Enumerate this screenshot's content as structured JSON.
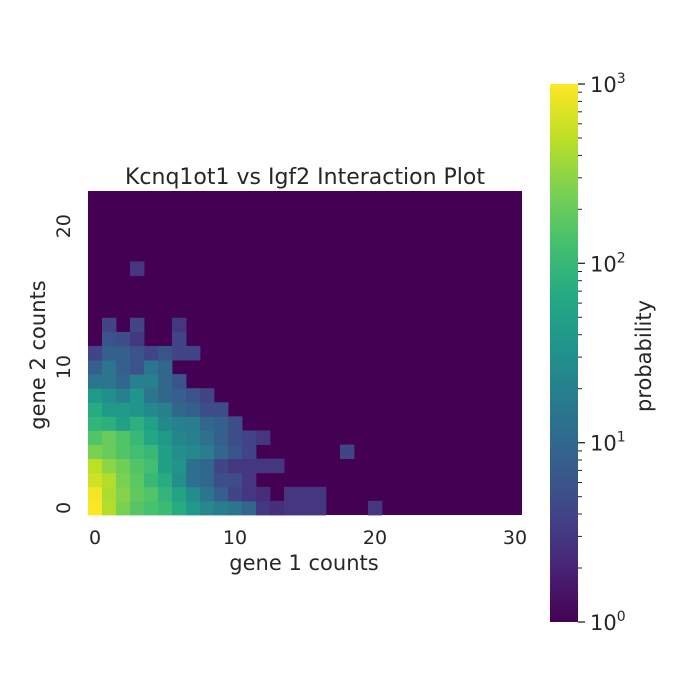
{
  "chart_data": {
    "type": "heatmap",
    "title": "Kcnq1ot1 vs Igf2 Interaction Plot",
    "xlabel": "gene 1 counts",
    "ylabel": "gene 2 counts",
    "x_range": [
      0,
      30
    ],
    "y_range": [
      0,
      22
    ],
    "x_ticks": [
      0,
      10,
      20,
      30
    ],
    "y_ticks": [
      0,
      10,
      20
    ],
    "colorbar": {
      "label": "probability",
      "scale": "log",
      "colormap": "viridis",
      "range": [
        1,
        1000
      ],
      "ticks": [
        {
          "value": 1,
          "base": "10",
          "exp": "0"
        },
        {
          "value": 10,
          "base": "10",
          "exp": "1"
        },
        {
          "value": 100,
          "base": "10",
          "exp": "2"
        },
        {
          "value": 1000,
          "base": "10",
          "exp": "3"
        }
      ]
    },
    "background_value": 1,
    "note": "Cells not listed have value 1 (10^0). Cells given as [x, y, value] in count units.",
    "cells": [
      [
        0,
        0,
        1000
      ],
      [
        1,
        0,
        450
      ],
      [
        2,
        0,
        250
      ],
      [
        3,
        0,
        160
      ],
      [
        4,
        0,
        130
      ],
      [
        5,
        0,
        110
      ],
      [
        6,
        0,
        70
      ],
      [
        7,
        0,
        40
      ],
      [
        8,
        0,
        25
      ],
      [
        9,
        0,
        18
      ],
      [
        10,
        0,
        15
      ],
      [
        11,
        0,
        10
      ],
      [
        12,
        0,
        3
      ],
      [
        13,
        0,
        2.5
      ],
      [
        14,
        0,
        3
      ],
      [
        15,
        0,
        3
      ],
      [
        16,
        0,
        3
      ],
      [
        20,
        0,
        3
      ],
      [
        0,
        1,
        900
      ],
      [
        1,
        1,
        420
      ],
      [
        2,
        1,
        280
      ],
      [
        3,
        1,
        180
      ],
      [
        4,
        1,
        150
      ],
      [
        5,
        1,
        90
      ],
      [
        6,
        1,
        55
      ],
      [
        7,
        1,
        28
      ],
      [
        8,
        1,
        15
      ],
      [
        9,
        1,
        8
      ],
      [
        10,
        1,
        4
      ],
      [
        11,
        1,
        3
      ],
      [
        12,
        1,
        2.5
      ],
      [
        14,
        1,
        3
      ],
      [
        15,
        1,
        3
      ],
      [
        16,
        1,
        3
      ],
      [
        0,
        2,
        600
      ],
      [
        1,
        2,
        450
      ],
      [
        2,
        2,
        250
      ],
      [
        3,
        2,
        170
      ],
      [
        4,
        2,
        100
      ],
      [
        5,
        2,
        70
      ],
      [
        6,
        2,
        30
      ],
      [
        7,
        2,
        12
      ],
      [
        8,
        2,
        10
      ],
      [
        9,
        2,
        5
      ],
      [
        10,
        2,
        5
      ],
      [
        11,
        2,
        3
      ],
      [
        0,
        3,
        500
      ],
      [
        1,
        3,
        300
      ],
      [
        2,
        3,
        220
      ],
      [
        3,
        3,
        150
      ],
      [
        4,
        3,
        120
      ],
      [
        5,
        3,
        50
      ],
      [
        6,
        3,
        35
      ],
      [
        7,
        3,
        12
      ],
      [
        8,
        3,
        10
      ],
      [
        9,
        3,
        4
      ],
      [
        10,
        3,
        3
      ],
      [
        11,
        3,
        3
      ],
      [
        12,
        3,
        3
      ],
      [
        13,
        3,
        3
      ],
      [
        0,
        4,
        250
      ],
      [
        1,
        4,
        200
      ],
      [
        2,
        4,
        150
      ],
      [
        3,
        4,
        120
      ],
      [
        4,
        4,
        100
      ],
      [
        5,
        4,
        50
      ],
      [
        6,
        4,
        30
      ],
      [
        7,
        4,
        25
      ],
      [
        8,
        4,
        18
      ],
      [
        9,
        4,
        10
      ],
      [
        10,
        4,
        6
      ],
      [
        11,
        4,
        4
      ],
      [
        18,
        4,
        4
      ],
      [
        0,
        5,
        150
      ],
      [
        1,
        5,
        200
      ],
      [
        2,
        5,
        150
      ],
      [
        3,
        5,
        100
      ],
      [
        4,
        5,
        60
      ],
      [
        5,
        5,
        40
      ],
      [
        6,
        5,
        22
      ],
      [
        7,
        5,
        20
      ],
      [
        8,
        5,
        13
      ],
      [
        9,
        5,
        8
      ],
      [
        10,
        5,
        5
      ],
      [
        11,
        5,
        4
      ],
      [
        12,
        5,
        3
      ],
      [
        0,
        6,
        90
      ],
      [
        1,
        6,
        80
      ],
      [
        2,
        6,
        50
      ],
      [
        3,
        6,
        80
      ],
      [
        4,
        6,
        50
      ],
      [
        5,
        6,
        25
      ],
      [
        6,
        6,
        20
      ],
      [
        7,
        6,
        18
      ],
      [
        8,
        6,
        10
      ],
      [
        9,
        6,
        8
      ],
      [
        10,
        6,
        5
      ],
      [
        0,
        7,
        70
      ],
      [
        1,
        7,
        40
      ],
      [
        2,
        7,
        40
      ],
      [
        3,
        7,
        35
      ],
      [
        4,
        7,
        25
      ],
      [
        5,
        7,
        20
      ],
      [
        6,
        7,
        10
      ],
      [
        7,
        7,
        8
      ],
      [
        8,
        7,
        5
      ],
      [
        9,
        7,
        5
      ],
      [
        0,
        8,
        40
      ],
      [
        1,
        8,
        30
      ],
      [
        2,
        8,
        20
      ],
      [
        3,
        8,
        35
      ],
      [
        4,
        8,
        15
      ],
      [
        5,
        8,
        10
      ],
      [
        6,
        8,
        8
      ],
      [
        7,
        8,
        6
      ],
      [
        8,
        8,
        4
      ],
      [
        0,
        9,
        15
      ],
      [
        1,
        9,
        15
      ],
      [
        2,
        9,
        10
      ],
      [
        3,
        9,
        20
      ],
      [
        4,
        9,
        20
      ],
      [
        5,
        9,
        10
      ],
      [
        6,
        9,
        6
      ],
      [
        0,
        10,
        8
      ],
      [
        1,
        10,
        15
      ],
      [
        2,
        10,
        8
      ],
      [
        3,
        10,
        6
      ],
      [
        4,
        10,
        15
      ],
      [
        5,
        10,
        10
      ],
      [
        0,
        11,
        4
      ],
      [
        1,
        11,
        8
      ],
      [
        2,
        11,
        8
      ],
      [
        3,
        11,
        6
      ],
      [
        4,
        11,
        4
      ],
      [
        5,
        11,
        6
      ],
      [
        6,
        11,
        4
      ],
      [
        7,
        11,
        4
      ],
      [
        1,
        12,
        6
      ],
      [
        2,
        12,
        5
      ],
      [
        3,
        12,
        3
      ],
      [
        6,
        12,
        4
      ],
      [
        1,
        13,
        4
      ],
      [
        3,
        13,
        4
      ],
      [
        6,
        13,
        3
      ],
      [
        3,
        17,
        3
      ]
    ]
  }
}
